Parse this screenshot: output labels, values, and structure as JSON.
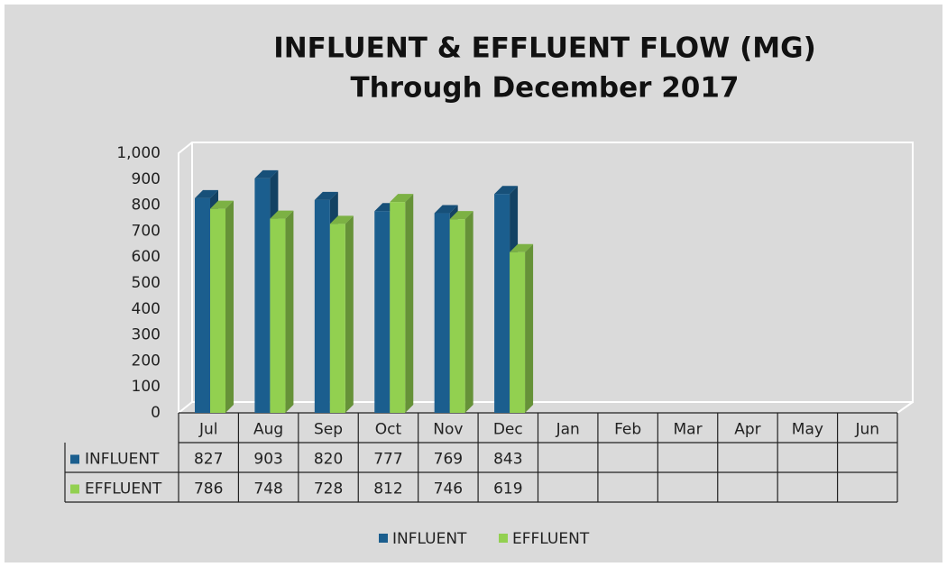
{
  "chart_data": {
    "type": "bar3d",
    "title": "INFLUENT & EFFLUENT FLOW (MG)",
    "subtitle": "Through December 2017",
    "categories": [
      "Jul",
      "Aug",
      "Sep",
      "Oct",
      "Nov",
      "Dec",
      "Jan",
      "Feb",
      "Mar",
      "Apr",
      "May",
      "Jun"
    ],
    "series": [
      {
        "name": "INFLUENT",
        "color": "#1b5e8e",
        "values": [
          827,
          903,
          820,
          777,
          769,
          843,
          null,
          null,
          null,
          null,
          null,
          null
        ]
      },
      {
        "name": "EFFLUENT",
        "color": "#92d050",
        "values": [
          786,
          748,
          728,
          812,
          746,
          619,
          null,
          null,
          null,
          null,
          null,
          null
        ]
      }
    ],
    "ylim": [
      0,
      1000
    ],
    "yticks": [
      0,
      100,
      200,
      300,
      400,
      500,
      600,
      700,
      800,
      900,
      {
        "value": 1000,
        "label": "1,000"
      }
    ],
    "grid": false,
    "legend": "bottom",
    "data_table": true
  }
}
